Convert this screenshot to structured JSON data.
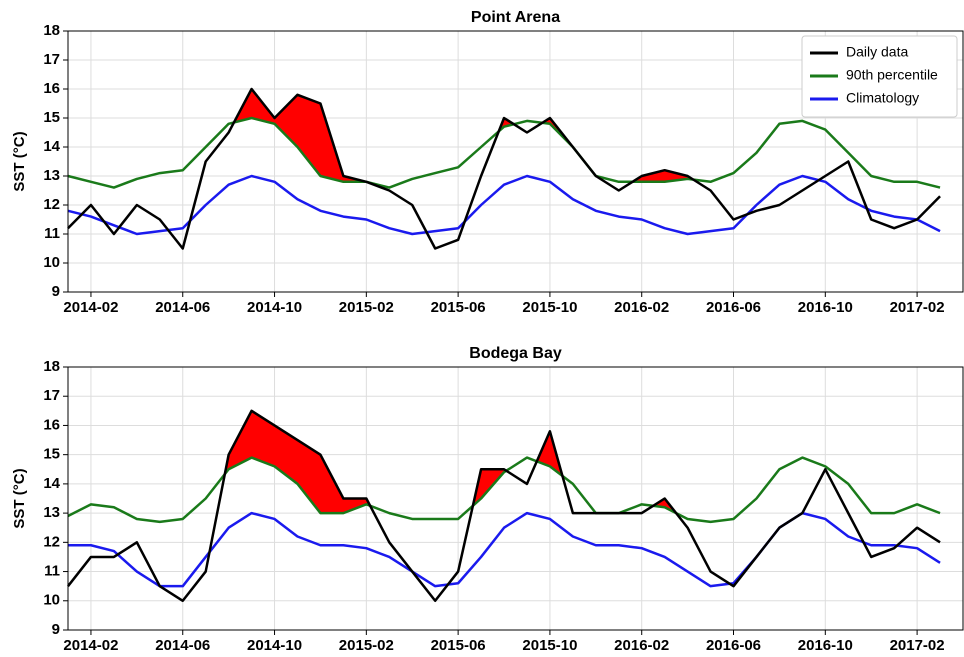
{
  "chart_data": [
    {
      "type": "line",
      "title": "Point Arena",
      "ylabel": "SST (°C)",
      "x": [
        "2014-01",
        "2014-02",
        "2014-03",
        "2014-04",
        "2014-05",
        "2014-06",
        "2014-07",
        "2014-08",
        "2014-09",
        "2014-10",
        "2014-11",
        "2014-12",
        "2015-01",
        "2015-02",
        "2015-03",
        "2015-04",
        "2015-05",
        "2015-06",
        "2015-07",
        "2015-08",
        "2015-09",
        "2015-10",
        "2015-11",
        "2015-12",
        "2016-01",
        "2016-02",
        "2016-03",
        "2016-04",
        "2016-05",
        "2016-06",
        "2016-07",
        "2016-08",
        "2016-09",
        "2016-10",
        "2016-11",
        "2016-12",
        "2017-01",
        "2017-02",
        "2017-03"
      ],
      "series": [
        {
          "name": "Daily data",
          "color": "#000000",
          "values": [
            11.2,
            12.0,
            11.0,
            12.0,
            11.5,
            10.5,
            13.5,
            14.5,
            16.0,
            15.0,
            15.8,
            15.5,
            13.0,
            12.8,
            12.5,
            12.0,
            10.5,
            10.8,
            13.0,
            15.0,
            14.5,
            15.0,
            14.0,
            13.0,
            12.5,
            13.0,
            13.2,
            13.0,
            12.5,
            11.5,
            11.8,
            12.0,
            12.5,
            13.0,
            13.5,
            11.5,
            11.2,
            11.5,
            12.3
          ]
        },
        {
          "name": "90th percentile",
          "color": "#1a7a1a",
          "values": [
            13.0,
            12.8,
            12.6,
            12.9,
            13.1,
            13.2,
            14.0,
            14.8,
            15.0,
            14.8,
            14.0,
            13.0,
            12.8,
            12.8,
            12.6,
            12.9,
            13.1,
            13.3,
            14.0,
            14.7,
            14.9,
            14.8,
            14.0,
            13.0,
            12.8,
            12.8,
            12.8,
            12.9,
            12.8,
            13.1,
            13.8,
            14.8,
            14.9,
            14.6,
            13.8,
            13.0,
            12.8,
            12.8,
            12.6
          ]
        },
        {
          "name": "Climatology",
          "color": "#1a1aee",
          "values": [
            11.8,
            11.6,
            11.3,
            11.0,
            11.1,
            11.2,
            12.0,
            12.7,
            13.0,
            12.8,
            12.2,
            11.8,
            11.6,
            11.5,
            11.2,
            11.0,
            11.1,
            11.2,
            12.0,
            12.7,
            13.0,
            12.8,
            12.2,
            11.8,
            11.6,
            11.5,
            11.2,
            11.0,
            11.1,
            11.2,
            12.0,
            12.7,
            13.0,
            12.8,
            12.2,
            11.8,
            11.6,
            11.5,
            11.1
          ]
        }
      ],
      "fill_color": "#ff0000",
      "xlim": [
        "2014-01",
        "2017-04"
      ],
      "xticks": [
        "2014-02",
        "2014-06",
        "2014-10",
        "2015-02",
        "2015-06",
        "2015-10",
        "2016-02",
        "2016-06",
        "2016-10",
        "2017-02"
      ],
      "ylim": [
        9,
        18
      ],
      "yticks": [
        9,
        10,
        11,
        12,
        13,
        14,
        15,
        16,
        17,
        18
      ],
      "grid": true,
      "legend": "upper right"
    },
    {
      "type": "line",
      "title": "Bodega Bay",
      "ylabel": "SST (°C)",
      "x": [
        "2014-01",
        "2014-02",
        "2014-03",
        "2014-04",
        "2014-05",
        "2014-06",
        "2014-07",
        "2014-08",
        "2014-09",
        "2014-10",
        "2014-11",
        "2014-12",
        "2015-01",
        "2015-02",
        "2015-03",
        "2015-04",
        "2015-05",
        "2015-06",
        "2015-07",
        "2015-08",
        "2015-09",
        "2015-10",
        "2015-11",
        "2015-12",
        "2016-01",
        "2016-02",
        "2016-03",
        "2016-04",
        "2016-05",
        "2016-06",
        "2016-07",
        "2016-08",
        "2016-09",
        "2016-10",
        "2016-11",
        "2016-12",
        "2017-01",
        "2017-02",
        "2017-03"
      ],
      "series": [
        {
          "color": "#000000",
          "values": [
            10.5,
            11.5,
            11.5,
            12.0,
            10.5,
            10.0,
            11.0,
            15.0,
            16.5,
            16.0,
            15.5,
            15.0,
            13.5,
            13.5,
            12.0,
            11.0,
            10.0,
            11.0,
            14.5,
            14.5,
            14.0,
            15.8,
            13.0,
            13.0,
            13.0,
            13.0,
            13.5,
            12.5,
            11.0,
            10.5,
            11.5,
            12.5,
            13.0,
            14.5,
            13.0,
            11.5,
            11.8,
            12.5,
            12.0
          ]
        },
        {
          "color": "#1a7a1a",
          "values": [
            12.9,
            13.3,
            13.2,
            12.8,
            12.7,
            12.8,
            13.5,
            14.5,
            14.9,
            14.6,
            14.0,
            13.0,
            13.0,
            13.3,
            13.0,
            12.8,
            12.8,
            12.8,
            13.5,
            14.4,
            14.9,
            14.6,
            14.0,
            13.0,
            13.0,
            13.3,
            13.2,
            12.8,
            12.7,
            12.8,
            13.5,
            14.5,
            14.9,
            14.6,
            14.0,
            13.0,
            13.0,
            13.3,
            13.0
          ]
        },
        {
          "color": "#1a1aee",
          "values": [
            11.9,
            11.9,
            11.7,
            11.0,
            10.5,
            10.5,
            11.5,
            12.5,
            13.0,
            12.8,
            12.2,
            11.9,
            11.9,
            11.8,
            11.5,
            11.0,
            10.5,
            10.6,
            11.5,
            12.5,
            13.0,
            12.8,
            12.2,
            11.9,
            11.9,
            11.8,
            11.5,
            11.0,
            10.5,
            10.6,
            11.5,
            12.5,
            13.0,
            12.8,
            12.2,
            11.9,
            11.9,
            11.8,
            11.3
          ]
        }
      ],
      "fill_color": "#ff0000",
      "xlim": [
        "2014-01",
        "2017-04"
      ],
      "xticks": [
        "2014-02",
        "2014-06",
        "2014-10",
        "2015-02",
        "2015-06",
        "2015-10",
        "2016-02",
        "2016-06",
        "2016-10",
        "2017-02"
      ],
      "ylim": [
        9,
        18
      ],
      "yticks": [
        9,
        10,
        11,
        12,
        13,
        14,
        15,
        16,
        17,
        18
      ],
      "grid": true
    }
  ]
}
